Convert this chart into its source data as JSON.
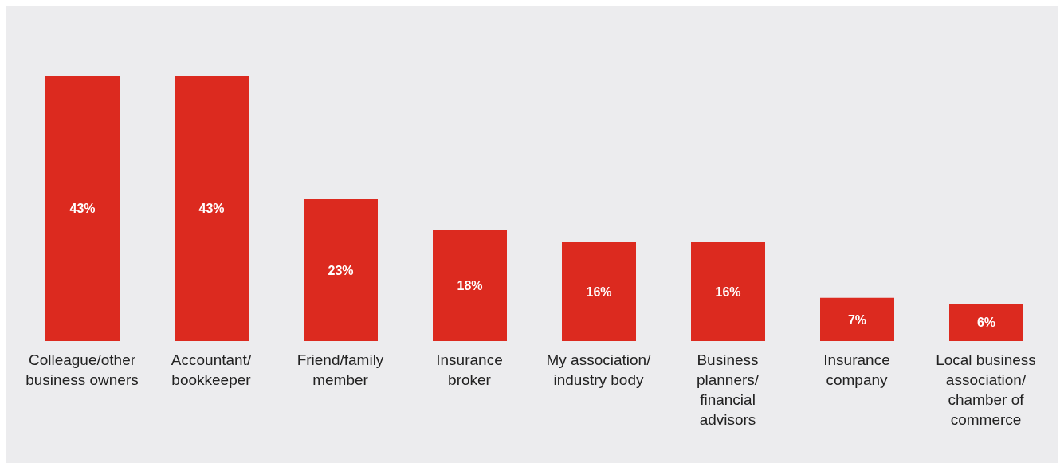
{
  "chart_data": {
    "type": "bar",
    "categories": [
      "Colleague/other business owners",
      "Accountant/bookkeeper",
      "Friend/family member",
      "Insurance broker",
      "My association/industry body",
      "Business planners/financial advisors",
      "Insurance company",
      "Local business association/chamber of commerce"
    ],
    "values": [
      43,
      43,
      23,
      18,
      16,
      16,
      7,
      6
    ],
    "value_labels": [
      "43%",
      "43%",
      "23%",
      "18%",
      "16%",
      "16%",
      "7%",
      "6%"
    ],
    "color": "#dc2a1f",
    "grid": false,
    "legend": false
  }
}
